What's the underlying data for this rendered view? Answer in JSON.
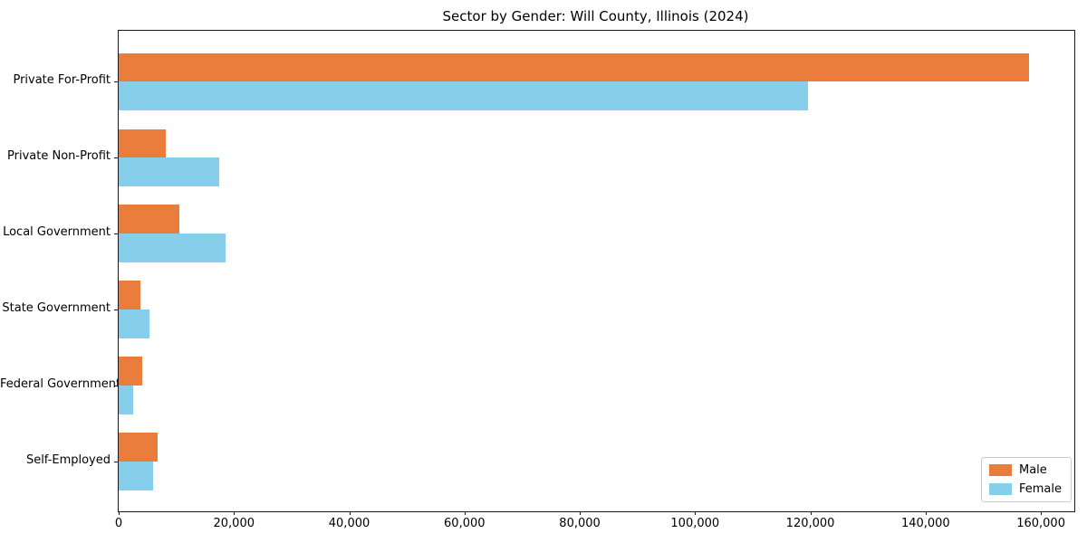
{
  "chart_data": {
    "type": "bar",
    "orientation": "horizontal",
    "title": "Sector by Gender: Will County, Illinois (2024)",
    "categories": [
      "Private For-Profit",
      "Private Non-Profit",
      "Local Government",
      "State Government",
      "Federal Government",
      "Self-Employed"
    ],
    "series": [
      {
        "name": "Male",
        "color": "#EA7C3C",
        "values": [
          158000,
          8200,
          10600,
          3700,
          4100,
          6700
        ]
      },
      {
        "name": "Female",
        "color": "#87CEEB",
        "values": [
          119600,
          17400,
          18600,
          5300,
          2500,
          5900
        ]
      }
    ],
    "xlabel": "",
    "ylabel": "",
    "xlim": [
      0,
      165800
    ],
    "xticks": [
      0,
      20000,
      40000,
      60000,
      80000,
      100000,
      120000,
      140000,
      160000
    ],
    "xtick_labels": [
      "0",
      "20,000",
      "40,000",
      "60,000",
      "80,000",
      "100,000",
      "120,000",
      "140,000",
      "160,000"
    ],
    "grid": false,
    "legend": {
      "position": "lower right",
      "labels": [
        "Male",
        "Female"
      ]
    }
  }
}
